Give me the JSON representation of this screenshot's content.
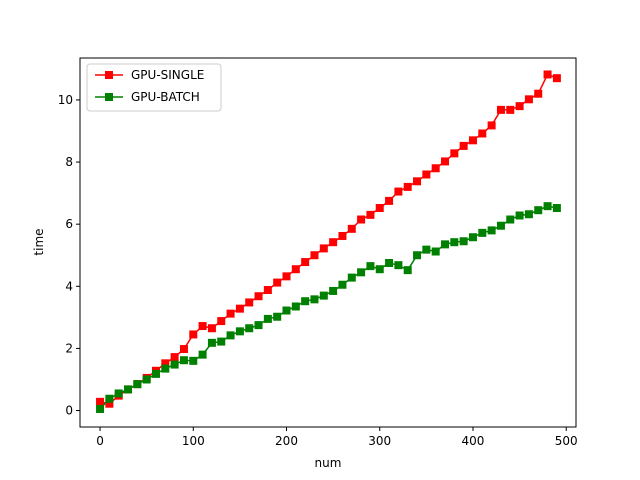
{
  "chart_data": {
    "type": "line",
    "xlabel": "num",
    "ylabel": "time",
    "xlim": [
      -21.5,
      510.5
    ],
    "ylim": [
      -0.53,
      11.35
    ],
    "xticks": [
      0,
      100,
      200,
      300,
      400,
      500
    ],
    "yticks": [
      0,
      2,
      4,
      6,
      8,
      10
    ],
    "grid": false,
    "legend_position": "upper-left",
    "marker": "square",
    "x": [
      0,
      10,
      20,
      30,
      40,
      50,
      60,
      70,
      80,
      90,
      100,
      110,
      120,
      130,
      140,
      150,
      160,
      170,
      180,
      190,
      200,
      210,
      220,
      230,
      240,
      250,
      260,
      270,
      280,
      290,
      300,
      310,
      320,
      330,
      340,
      350,
      360,
      370,
      380,
      390,
      400,
      410,
      420,
      430,
      440,
      450,
      460,
      470,
      480,
      490
    ],
    "series": [
      {
        "name": "GPU-SINGLE",
        "color": "#ff0000",
        "values": [
          0.28,
          0.22,
          0.48,
          0.68,
          0.85,
          1.05,
          1.28,
          1.52,
          1.72,
          1.98,
          2.45,
          2.72,
          2.65,
          2.88,
          3.12,
          3.28,
          3.48,
          3.68,
          3.88,
          4.12,
          4.32,
          4.55,
          4.78,
          5.0,
          5.22,
          5.42,
          5.62,
          5.85,
          6.15,
          6.3,
          6.52,
          6.75,
          7.05,
          7.2,
          7.38,
          7.6,
          7.8,
          8.02,
          8.28,
          8.52,
          8.7,
          8.92,
          9.18,
          9.68,
          9.68,
          9.8,
          10.02,
          10.2,
          10.82,
          10.7
        ]
      },
      {
        "name": "GPU-BATCH",
        "color": "#008000",
        "values": [
          0.05,
          0.38,
          0.55,
          0.68,
          0.85,
          1.0,
          1.18,
          1.35,
          1.48,
          1.62,
          1.6,
          1.8,
          2.18,
          2.22,
          2.42,
          2.55,
          2.65,
          2.75,
          2.95,
          3.02,
          3.22,
          3.35,
          3.52,
          3.58,
          3.7,
          3.85,
          4.05,
          4.28,
          4.45,
          4.65,
          4.55,
          4.75,
          4.68,
          4.52,
          5.0,
          5.18,
          5.12,
          5.35,
          5.42,
          5.45,
          5.58,
          5.72,
          5.8,
          5.95,
          6.15,
          6.28,
          6.32,
          6.45,
          6.58,
          6.52
        ]
      }
    ]
  }
}
